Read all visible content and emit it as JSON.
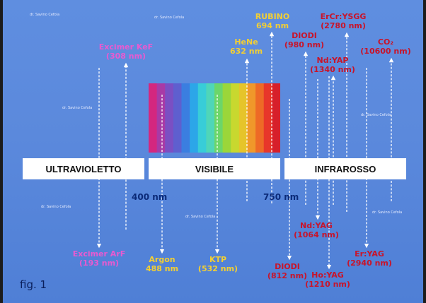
{
  "bands": {
    "uv": "ULTRAVIOLETTO",
    "visible": "VISIBILE",
    "ir": "INFRAROSSO"
  },
  "markers": {
    "nm400": "400 nm",
    "nm750": "750 nm"
  },
  "figure_label": "fig. 1",
  "watermark": "dr. Savino Cefola",
  "spectrum_colors": [
    "#d4277f",
    "#a83aa6",
    "#7b4fc3",
    "#5f5fcf",
    "#3b7ee0",
    "#2ca6e8",
    "#38cdd8",
    "#4fd6b8",
    "#6cd66a",
    "#9bd63a",
    "#c8d82f",
    "#e6c42a",
    "#f0982a",
    "#ee6a26",
    "#e8362a",
    "#d71f2a"
  ],
  "colors": {
    "magenta": "#e85ad0",
    "yellow": "#f3cf33",
    "red": "#c8142a"
  },
  "lasers_top": [
    {
      "id": "excimer-kef",
      "name": "Excimer KeF",
      "wavelength": "(308 nm)",
      "color": "magenta"
    },
    {
      "id": "hene",
      "name": "HeNe",
      "wavelength": "632 nm",
      "color": "yellow"
    },
    {
      "id": "rubino",
      "name": "RUBINO",
      "wavelength": "694 nm",
      "color": "yellow"
    },
    {
      "id": "diodi-980",
      "name": "DIODI",
      "wavelength": "(980 nm)",
      "color": "red"
    },
    {
      "id": "ercr-ysgg",
      "name": "ErCr:YSGG",
      "wavelength": "(2780 nm)",
      "color": "red"
    },
    {
      "id": "ndyap",
      "name": "Nd:YAP",
      "wavelength": "(1340 nm)",
      "color": "red"
    },
    {
      "id": "co2",
      "name": "CO₂",
      "wavelength": "(10600 nm)",
      "color": "red"
    }
  ],
  "lasers_bottom": [
    {
      "id": "excimer-arf",
      "name": "Excimer ArF",
      "wavelength": "(193 nm)",
      "color": "magenta"
    },
    {
      "id": "argon",
      "name": "Argon",
      "wavelength": "488 nm",
      "color": "yellow"
    },
    {
      "id": "ktp",
      "name": "KTP",
      "wavelength": "(532 nm)",
      "color": "yellow"
    },
    {
      "id": "ndyag",
      "name": "Nd:YAG",
      "wavelength": "(1064 nm)",
      "color": "red"
    },
    {
      "id": "diodi-812",
      "name": "DIODI",
      "wavelength": "(812 nm)",
      "color": "red"
    },
    {
      "id": "hoyag",
      "name": "Ho:YAG",
      "wavelength": "(1210 nm)",
      "color": "red"
    },
    {
      "id": "eryag",
      "name": "Er:YAG",
      "wavelength": "(2940 nm)",
      "color": "red"
    }
  ]
}
